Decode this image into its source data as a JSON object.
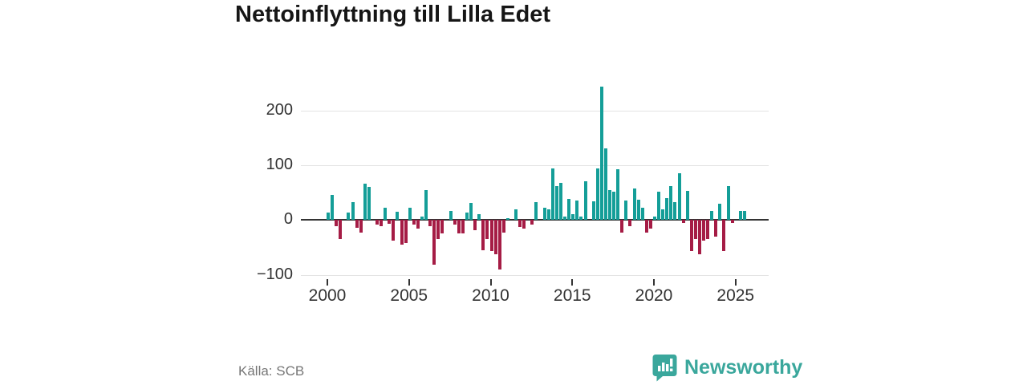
{
  "title": "Nettoinflyttning till Lilla Edet",
  "footer": {
    "source": "Källa: SCB",
    "brand": "Newsworthy"
  },
  "icons": {
    "brand_logo": "newsworthy-speech-bubble-bar-chart-icon"
  },
  "colors": {
    "positive_bar": "#149e98",
    "negative_bar": "#a51c45",
    "axis": "#333333",
    "grid": "#e3e3e3",
    "brand_teal": "#3aa79c",
    "title_text": "#161616",
    "source_text": "#767676"
  },
  "chart_data": {
    "type": "bar",
    "title": "Nettoinflyttning till Lilla Edet",
    "xlabel": "",
    "ylabel": "",
    "frequency": "quarterly",
    "start_year": 2000,
    "start_quarter": 1,
    "values": [
      14,
      46,
      -12,
      -35,
      0,
      14,
      32,
      -14,
      -23,
      66,
      61,
      0,
      -8,
      -12,
      23,
      -7,
      -37,
      15,
      -45,
      -42,
      22,
      -8,
      -16,
      6,
      55,
      -11,
      -81,
      -35,
      -25,
      0,
      16,
      -8,
      -25,
      -25,
      14,
      31,
      -18,
      10,
      -55,
      -35,
      -57,
      -63,
      -91,
      -23,
      3,
      0,
      20,
      -13,
      -15,
      0,
      -8,
      33,
      0,
      22,
      19,
      94,
      62,
      68,
      7,
      38,
      10,
      35,
      7,
      70,
      0,
      34,
      94,
      244,
      131,
      54,
      52,
      93,
      -23,
      36,
      -12,
      58,
      37,
      23,
      -23,
      -16,
      6,
      51,
      19,
      40,
      62,
      33,
      85,
      -6,
      53,
      -57,
      -35,
      -62,
      -38,
      -35,
      16,
      -30,
      29,
      -56,
      62,
      -5,
      0,
      17,
      16
    ],
    "y_ticks": [
      {
        "value": 200,
        "label": "200"
      },
      {
        "value": 100,
        "label": "100"
      },
      {
        "value": 0,
        "label": "0"
      },
      {
        "value": -100,
        "label": "−100"
      }
    ],
    "x_tick_years": [
      "2000",
      "2005",
      "2010",
      "2015",
      "2020",
      "2025"
    ],
    "ylim": [
      -120,
      255
    ],
    "grid": true,
    "legend": "none"
  }
}
